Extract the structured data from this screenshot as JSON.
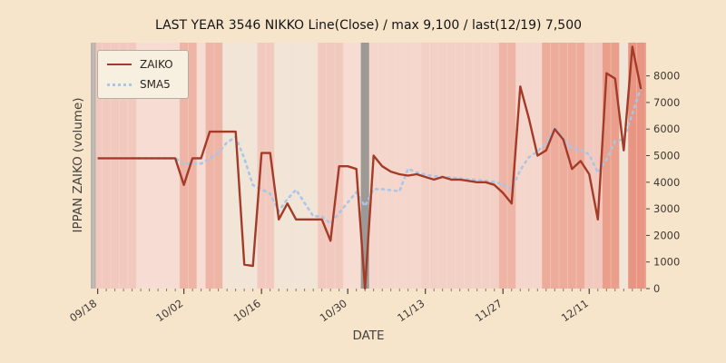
{
  "chart_data": {
    "type": "line",
    "title": "LAST YEAR 3546 NIKKO Line(Close) / max 9,100 / last(12/19) 7,500",
    "xlabel": "DATE",
    "ylabel": "IPPAN ZAIKO (volume)",
    "x_ticks": [
      "09/18",
      "10/02",
      "10/16",
      "10/30",
      "11/13",
      "11/27",
      "12/11"
    ],
    "x_tick_indices": [
      0,
      10,
      19,
      29,
      38,
      47,
      57
    ],
    "y_ticks": [
      0,
      1000,
      2000,
      3000,
      4000,
      5000,
      6000,
      7000,
      8000
    ],
    "ylim": [
      0,
      9250
    ],
    "grid": false,
    "legend_position": "upper-left",
    "background_color": "#f6e5cb",
    "dates": [
      "09/18",
      "09/19",
      "09/20",
      "09/21",
      "09/22",
      "09/25",
      "09/26",
      "09/27",
      "09/28",
      "09/29",
      "10/02",
      "10/03",
      "10/04",
      "10/05",
      "10/06",
      "10/10",
      "10/11",
      "10/12",
      "10/13",
      "10/16",
      "10/17",
      "10/18",
      "10/19",
      "10/20",
      "10/23",
      "10/24",
      "10/25",
      "10/26",
      "10/27",
      "10/30",
      "10/31",
      "11/01",
      "11/02",
      "11/06",
      "11/07",
      "11/08",
      "11/09",
      "11/10",
      "11/13",
      "11/14",
      "11/15",
      "11/16",
      "11/17",
      "11/20",
      "11/21",
      "11/22",
      "11/24",
      "11/27",
      "11/28",
      "11/29",
      "11/30",
      "12/01",
      "12/04",
      "12/05",
      "12/06",
      "12/07",
      "12/08",
      "12/11",
      "12/12",
      "12/13",
      "12/14",
      "12/15",
      "12/18",
      "12/19"
    ],
    "series": [
      {
        "name": "ZAIKO",
        "color": "#a33b28",
        "style": "solid",
        "values": [
          4900,
          4900,
          4900,
          4900,
          4900,
          4900,
          4900,
          4900,
          4900,
          4900,
          3900,
          4900,
          4900,
          5900,
          5900,
          5900,
          5900,
          900,
          850,
          5100,
          5100,
          2600,
          3200,
          2600,
          2600,
          2600,
          2600,
          1800,
          4600,
          4600,
          4500,
          0,
          5000,
          4600,
          4400,
          4300,
          4250,
          4300,
          4200,
          4100,
          4200,
          4100,
          4100,
          4050,
          4000,
          4000,
          3900,
          3600,
          3200,
          7600,
          6400,
          5000,
          5200,
          6000,
          5600,
          4500,
          4800,
          4300,
          2600,
          8100,
          7900,
          5200,
          9100,
          7500
        ]
      },
      {
        "name": "SMA5",
        "color": "#a9c6e6",
        "style": "dotted",
        "derived_from": "ZAIKO",
        "window": 5
      }
    ],
    "bands": [
      {
        "x0": -0.8,
        "x1": -0.2,
        "color": "#b9b3ad"
      },
      {
        "x0": -0.2,
        "x1": 4.5,
        "color": "#f2c9bf"
      },
      {
        "x0": 4.5,
        "x1": 9.5,
        "color": "#f6dcd2"
      },
      {
        "x0": 9.5,
        "x1": 11.5,
        "color": "#eeb4a6"
      },
      {
        "x0": 11.5,
        "x1": 12.5,
        "color": "#f6dcd2"
      },
      {
        "x0": 12.5,
        "x1": 14.5,
        "color": "#eeb4a6"
      },
      {
        "x0": 14.5,
        "x1": 18.5,
        "color": "#f1e5d8"
      },
      {
        "x0": 18.5,
        "x1": 20.5,
        "color": "#f2c9bf"
      },
      {
        "x0": 20.5,
        "x1": 25.5,
        "color": "#f1e5d8"
      },
      {
        "x0": 25.5,
        "x1": 28.5,
        "color": "#f2c9bf"
      },
      {
        "x0": 28.5,
        "x1": 30.5,
        "color": "#f6dcd2"
      },
      {
        "x0": 30.5,
        "x1": 31.5,
        "color": "#9d9995"
      },
      {
        "x0": 31.5,
        "x1": 37.5,
        "color": "#f5d6cc"
      },
      {
        "x0": 37.5,
        "x1": 46.5,
        "color": "#f3d0c5"
      },
      {
        "x0": 46.5,
        "x1": 48.5,
        "color": "#eeb4a6"
      },
      {
        "x0": 48.5,
        "x1": 51.5,
        "color": "#f5d6cc"
      },
      {
        "x0": 51.5,
        "x1": 56.5,
        "color": "#edab9b"
      },
      {
        "x0": 56.5,
        "x1": 58.5,
        "color": "#f2c9bf"
      },
      {
        "x0": 58.5,
        "x1": 60.5,
        "color": "#ea9f8c"
      },
      {
        "x0": 60.5,
        "x1": 61.5,
        "color": "#f1e5d8"
      },
      {
        "x0": 61.5,
        "x1": 63.6,
        "color": "#e89683"
      }
    ]
  }
}
